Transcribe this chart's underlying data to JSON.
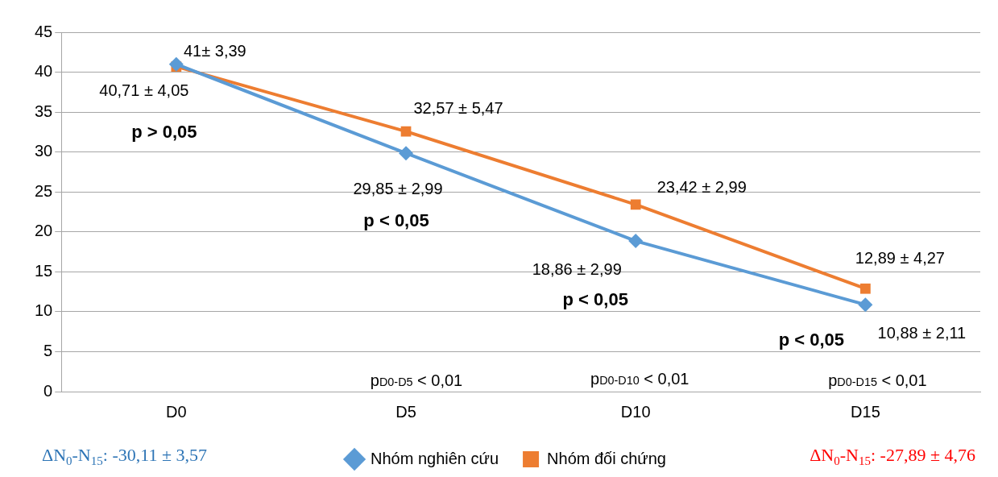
{
  "chart_data": {
    "type": "line",
    "categories": [
      "D0",
      "D5",
      "D10",
      "D15"
    ],
    "series": [
      {
        "name": "Nhóm nghiên cứu",
        "color": "#5b9bd5",
        "marker": "diamond",
        "values": [
          41,
          29.85,
          18.86,
          10.88
        ],
        "value_labels": [
          "41± 3,39",
          "29,85 ± 2,99",
          "18,86 ± 2,99",
          "10,88 ± 2,11"
        ]
      },
      {
        "name": "Nhóm đối chứng",
        "color": "#ed7d31",
        "marker": "square",
        "values": [
          40.71,
          32.57,
          23.42,
          12.89
        ],
        "value_labels": [
          "40,71 ± 4,05",
          "32,57 ± 5,47",
          "23,42 ± 2,99",
          "12,89 ± 4,27"
        ]
      }
    ],
    "ylim": [
      0,
      45
    ],
    "yticks": [
      0,
      5,
      10,
      15,
      20,
      25,
      30,
      35,
      40,
      45
    ],
    "grid": "y",
    "legend": "bottom",
    "line_style": "solid",
    "annotations": [
      "ΔN$_{0}$-N$_{15}$: -30,11 ±  3,57",
      "ΔN$_{0}$-N$_{15}$: -27,89 ± 4,76",
      "p > 0,05",
      "p < 0,05",
      "p < 0,05",
      "p < 0,05",
      "p$_{D0-D5}$ < 0,01",
      "p$_{D0-D10}$ < 0,01",
      "p$_{D0-D15}$ < 0,01"
    ]
  }
}
